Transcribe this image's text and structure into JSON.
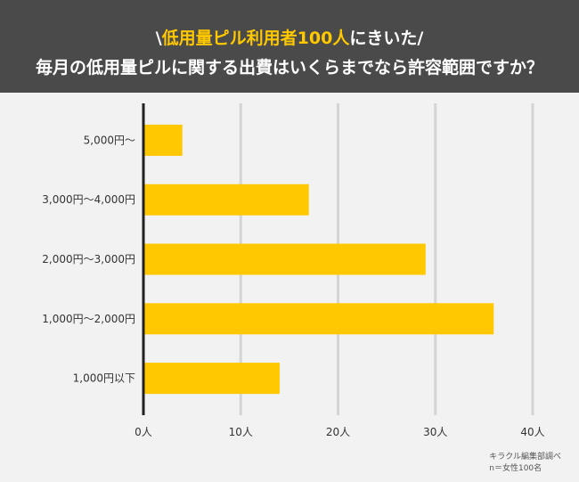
{
  "header": {
    "line1_prefix": "\\",
    "line1_highlight": "低用量ピル利用者100人",
    "line1_suffix": "にきいた/",
    "line2": "毎月の低用量ピルに関する出費はいくらまでなら許容範囲ですか？"
  },
  "chart_data": {
    "type": "bar",
    "orientation": "horizontal",
    "categories": [
      "5,000円〜",
      "3,000円〜4,000円",
      "2,000円〜3,000円",
      "1,000円〜2,000円",
      "1,000円以下"
    ],
    "values": [
      4,
      17,
      29,
      36,
      14
    ],
    "xlim": [
      0,
      40
    ],
    "xticks": [
      0,
      10,
      20,
      30,
      40
    ],
    "xtick_labels": [
      "0人",
      "10人",
      "20人",
      "30人",
      "40人"
    ],
    "grid": "vertical",
    "bar_color": "#ffc800"
  },
  "source": {
    "line1": "キラクル編集部調べ",
    "line2": "n＝女性100名"
  }
}
